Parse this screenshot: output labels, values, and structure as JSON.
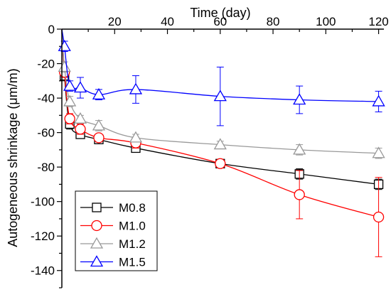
{
  "chart_data": {
    "type": "line",
    "title": "",
    "xlabel": "Time (day)",
    "ylabel": "Autogeneous shrinkage (μm/m)",
    "x_axis_position": "top",
    "xlim": [
      0,
      122
    ],
    "ylim": [
      -150,
      0
    ],
    "x_ticks": [
      "20",
      "40",
      "60",
      "80",
      "100",
      "120"
    ],
    "x_tick_values": [
      20,
      40,
      60,
      80,
      100,
      120
    ],
    "y_ticks": [
      "0",
      "-20",
      "-40",
      "-60",
      "-80",
      "-100",
      "-120",
      "-140"
    ],
    "y_tick_values": [
      0,
      -20,
      -40,
      -60,
      -80,
      -100,
      -120,
      -140
    ],
    "grid": false,
    "legend_position": "bottom-left",
    "series": [
      {
        "name": "M0.8",
        "color": "#000000",
        "marker": "square",
        "points": [
          {
            "x": 1,
            "y": -27,
            "err": 3
          },
          {
            "x": 3,
            "y": -55,
            "err": 3
          },
          {
            "x": 7,
            "y": -61,
            "err": 2
          },
          {
            "x": 14,
            "y": -64,
            "err": 2
          },
          {
            "x": 28,
            "y": -69,
            "err": 2
          },
          {
            "x": 60,
            "y": -78,
            "err": 2
          },
          {
            "x": 90,
            "y": -84,
            "err": 3
          },
          {
            "x": 120,
            "y": -90,
            "err": 3
          }
        ]
      },
      {
        "name": "M1.0",
        "color": "#ff0000",
        "marker": "circle",
        "points": [
          {
            "x": 1,
            "y": -25,
            "err": 3
          },
          {
            "x": 3,
            "y": -52,
            "err": 3
          },
          {
            "x": 7,
            "y": -58,
            "err": 3
          },
          {
            "x": 14,
            "y": -63,
            "err": 2
          },
          {
            "x": 28,
            "y": -66,
            "err": 3
          },
          {
            "x": 60,
            "y": -78,
            "err": 2
          },
          {
            "x": 90,
            "y": -96,
            "err": 14
          },
          {
            "x": 120,
            "y": -109,
            "err": 23
          }
        ]
      },
      {
        "name": "M1.2",
        "color": "#999999",
        "marker": "triangle",
        "points": [
          {
            "x": 1,
            "y": -22,
            "err": 3
          },
          {
            "x": 3,
            "y": -42,
            "err": 3
          },
          {
            "x": 7,
            "y": -52,
            "err": 2
          },
          {
            "x": 14,
            "y": -56,
            "err": 3
          },
          {
            "x": 28,
            "y": -63,
            "err": 2
          },
          {
            "x": 60,
            "y": -67,
            "err": 2
          },
          {
            "x": 90,
            "y": -70,
            "err": 3
          },
          {
            "x": 120,
            "y": -72,
            "err": 3
          }
        ]
      },
      {
        "name": "M1.5",
        "color": "#0000ff",
        "marker": "triangle",
        "points": [
          {
            "x": 1,
            "y": -10,
            "err": 3
          },
          {
            "x": 3,
            "y": -33,
            "err": 3
          },
          {
            "x": 7,
            "y": -34,
            "err": 6
          },
          {
            "x": 14,
            "y": -38,
            "err": 3
          },
          {
            "x": 28,
            "y": -35,
            "err": 8
          },
          {
            "x": 60,
            "y": -39,
            "err": 17
          },
          {
            "x": 90,
            "y": -41,
            "err": 8
          },
          {
            "x": 120,
            "y": -42,
            "err": 6
          }
        ]
      }
    ]
  }
}
